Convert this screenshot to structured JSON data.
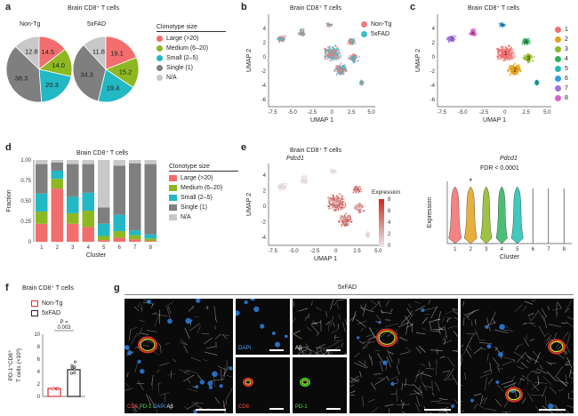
{
  "figure": {
    "panel_labels": [
      "a",
      "b",
      "c",
      "d",
      "e",
      "f",
      "g"
    ],
    "a": {
      "title": "Brain CD8⁺ T cells",
      "legend_title": "Clonotype size",
      "legend": [
        "Large (>20)",
        "Medium (6–20)",
        "Small (2–5)",
        "Single (1)",
        "N/A"
      ],
      "colors": [
        "#f26d6d",
        "#8db822",
        "#22b8c4",
        "#7f7f7f",
        "#c8c8c8"
      ]
    },
    "b": {
      "title": "Brain CD8⁺ T cells",
      "legend": [
        "Non-Tg",
        "5xFAD"
      ],
      "colors": [
        "#f07a7a",
        "#3bbcc7"
      ]
    },
    "c": {
      "title": "Brain CD8⁺ T cells",
      "legend": [
        "1",
        "2",
        "3",
        "4",
        "5",
        "6",
        "7",
        "8"
      ],
      "colors": [
        "#f26d6d",
        "#e3a21a",
        "#8db822",
        "#2db35a",
        "#1fbfb0",
        "#2f9fe0",
        "#a070e0",
        "#e060c8"
      ]
    },
    "umap": {
      "xlabel": "UMAP 1",
      "ylabel": "UMAP 2",
      "xticks": [
        "-7.5",
        "-5.0",
        "-2.5",
        "0",
        "2.5",
        "5.0"
      ],
      "yticks": [
        "4",
        "2",
        "0",
        "-2",
        "-4",
        "-6"
      ]
    },
    "d": {
      "title": "Brain CD8⁺ T cells",
      "xlabel": "Cluster",
      "ylabel": "Fraction",
      "legend_title": "Clonotype size",
      "yticks": [
        "1.00",
        "0.75",
        "0.50",
        "0.25",
        "0"
      ]
    },
    "e": {
      "title": "Brain CD8⁺ T cells",
      "gene": "Pdcd1",
      "colorbar_title": "Expression",
      "colorbar_ticks": [
        "8",
        "6",
        "4",
        "2",
        "0"
      ],
      "umap_yticks": [
        "4",
        "2",
        "0",
        "-2",
        "-4"
      ],
      "umap_xticks": [
        "-7.5",
        "-5.0",
        "-2.5",
        "0",
        "2.5",
        "5.0"
      ],
      "violin_title": "Pdcd1",
      "fdr": "FDR < 0.0001",
      "violin_ylabel": "Expression",
      "violin_xlabel": "Cluster",
      "violin_star": "*"
    },
    "f": {
      "title": "Brain CD8⁺ T cells",
      "legend": [
        "Non-Tg",
        "5xFAD"
      ],
      "p": "P =",
      "p_value": "0.003",
      "ylabel_1": "PD-1⁺CD8⁺",
      "ylabel_2": "T cells (×10³)",
      "yticks": [
        "10",
        "8",
        "6",
        "4",
        "2",
        "0"
      ]
    },
    "g": {
      "title": "5xFAD",
      "labels": {
        "merge_cd8": "CD8",
        "merge_pd1": "PD-1",
        "merge_dapi": "DAPI",
        "merge_ab": "Aβ",
        "dapi": "DAPI",
        "ab": "Aβ",
        "cd8": "CD8",
        "pd1": "PD-1"
      }
    }
  },
  "chart_data": [
    {
      "type": "pie",
      "title": "Non-Tg",
      "labels": [
        "Large (>20)",
        "Medium (6–20)",
        "Small (2–5)",
        "Single (1)",
        "N/A"
      ],
      "values": [
        14.5,
        14.0,
        20.3,
        38.3,
        12.8
      ]
    },
    {
      "type": "pie",
      "title": "5xFAD",
      "labels": [
        "Large (>20)",
        "Medium (6–20)",
        "Small (2–5)",
        "Single (1)",
        "N/A"
      ],
      "values": [
        19.1,
        15.2,
        19.4,
        34.3,
        11.8
      ]
    },
    {
      "type": "bar",
      "stacked": true,
      "title": "Brain CD8⁺ T cells",
      "categories": [
        "1",
        "2",
        "3",
        "4",
        "5",
        "6",
        "7",
        "8"
      ],
      "xlabel": "Cluster",
      "ylabel": "Fraction",
      "ylim": [
        0,
        1
      ],
      "series": [
        {
          "name": "Large (>20)",
          "values": [
            0.22,
            0.65,
            0.22,
            0.18,
            0.02,
            0.05,
            0.03,
            0.01
          ]
        },
        {
          "name": "Medium (6–20)",
          "values": [
            0.15,
            0.12,
            0.13,
            0.2,
            0.05,
            0.08,
            0.05,
            0.03
          ]
        },
        {
          "name": "Small (2–5)",
          "values": [
            0.22,
            0.1,
            0.2,
            0.22,
            0.15,
            0.2,
            0.06,
            0.05
          ]
        },
        {
          "name": "Single (1)",
          "values": [
            0.36,
            0.1,
            0.4,
            0.35,
            0.2,
            0.6,
            0.82,
            0.86
          ]
        },
        {
          "name": "N/A",
          "values": [
            0.05,
            0.03,
            0.05,
            0.05,
            0.58,
            0.07,
            0.04,
            0.05
          ]
        }
      ]
    },
    {
      "type": "bar",
      "title": "Brain CD8⁺ T cells",
      "categories": [
        "Non-Tg",
        "5xFAD"
      ],
      "ylabel": "PD-1⁺CD8⁺ T cells (×10³)",
      "ylim": [
        0,
        10
      ],
      "values": [
        1.3,
        4.3
      ]
    }
  ]
}
